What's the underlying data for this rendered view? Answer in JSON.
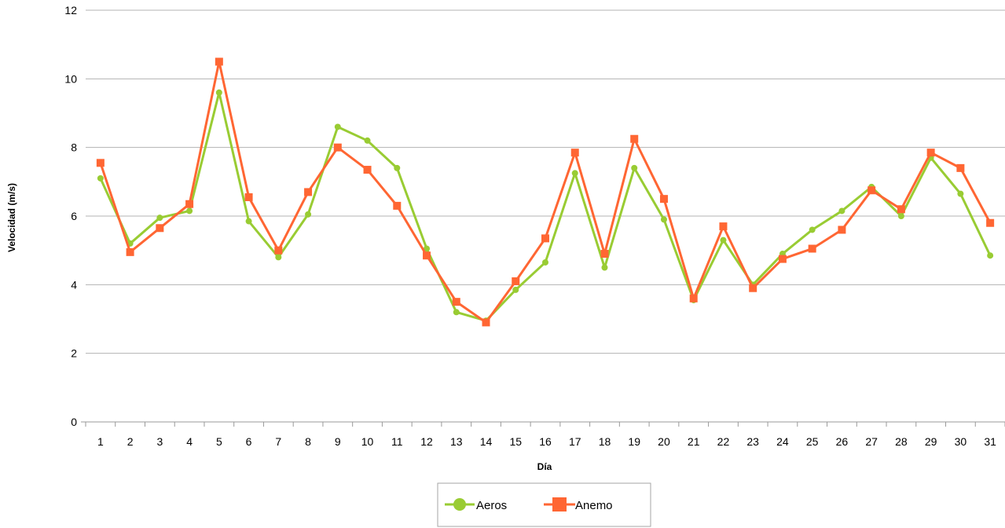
{
  "chart_data": {
    "type": "line",
    "title": "",
    "xlabel": "Día",
    "ylabel": "Velocidad (m/s)",
    "ylim": [
      0,
      12
    ],
    "yticks": [
      0,
      2,
      4,
      6,
      8,
      10,
      12
    ],
    "grid": true,
    "legend_position": "bottom-center",
    "categories": [
      "1",
      "2",
      "3",
      "4",
      "5",
      "6",
      "7",
      "8",
      "9",
      "10",
      "11",
      "12",
      "13",
      "14",
      "15",
      "16",
      "17",
      "18",
      "19",
      "20",
      "21",
      "22",
      "23",
      "24",
      "25",
      "26",
      "27",
      "28",
      "29",
      "30",
      "31"
    ],
    "series": [
      {
        "name": "Aeros",
        "color": "#99cc33",
        "marker": "circle",
        "values": [
          7.1,
          5.2,
          5.95,
          6.15,
          9.6,
          5.85,
          4.8,
          6.05,
          8.6,
          8.2,
          7.4,
          5.05,
          3.2,
          2.95,
          3.85,
          4.65,
          7.25,
          4.5,
          7.4,
          5.9,
          3.55,
          5.3,
          4.0,
          4.9,
          5.6,
          6.15,
          6.85,
          6.0,
          7.7,
          6.65,
          4.85
        ]
      },
      {
        "name": "Anemo",
        "color": "#ff6633",
        "marker": "square",
        "values": [
          7.55,
          4.95,
          5.65,
          6.35,
          10.5,
          6.55,
          5.0,
          6.7,
          8.0,
          7.35,
          6.3,
          4.85,
          3.5,
          2.9,
          4.1,
          5.35,
          7.85,
          4.9,
          8.25,
          6.5,
          3.6,
          5.7,
          3.9,
          4.75,
          5.05,
          5.6,
          6.75,
          6.2,
          7.85,
          7.4,
          5.8
        ]
      }
    ]
  }
}
